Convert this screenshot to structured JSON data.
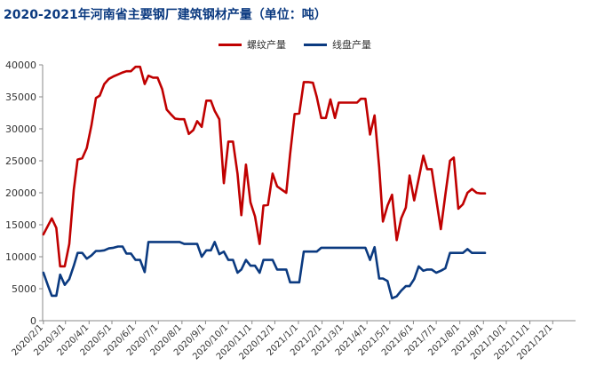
{
  "chart_data": {
    "type": "line",
    "title": "2020-2021年河南省主要钢厂建筑钢材产量（单位：吨）",
    "ylim": [
      0,
      40000
    ],
    "yticks": [
      0,
      5000,
      10000,
      15000,
      20000,
      25000,
      30000,
      35000,
      40000
    ],
    "xlim": [
      "2020-01-31",
      "2021-12-31"
    ],
    "xtick_labels": [
      "2020/2/1",
      "2020/3/1",
      "2020/4/1",
      "2020/5/1",
      "2020/6/1",
      "2020/7/1",
      "2020/8/1",
      "2020/9/1",
      "2020/10/1",
      "2020/11/1",
      "2020/12/1",
      "2021/1/1",
      "2021/2/1",
      "2021/3/1",
      "2021/4/1",
      "2021/5/1",
      "2021/6/1",
      "2021/7/1",
      "2021/8/1",
      "2021/9/1",
      "2021/10/1",
      "2021/11/1",
      "2021/12/1"
    ],
    "grid": false,
    "legend_position": "top-center",
    "series": [
      {
        "name": "螺纹产量",
        "color": "#c00000",
        "points": [
          [
            "2020-02-01",
            13500
          ],
          [
            "2020-02-12",
            16000
          ],
          [
            "2020-02-18",
            14500
          ],
          [
            "2020-02-23",
            8500
          ],
          [
            "2020-02-29",
            8500
          ],
          [
            "2020-03-06",
            12000
          ],
          [
            "2020-03-12",
            20500
          ],
          [
            "2020-03-17",
            25200
          ],
          [
            "2020-03-23",
            25400
          ],
          [
            "2020-03-29",
            27000
          ],
          [
            "2020-04-04",
            30500
          ],
          [
            "2020-04-10",
            34800
          ],
          [
            "2020-04-15",
            35200
          ],
          [
            "2020-04-21",
            37000
          ],
          [
            "2020-04-27",
            37800
          ],
          [
            "2020-05-03",
            38200
          ],
          [
            "2020-05-09",
            38500
          ],
          [
            "2020-05-15",
            38800
          ],
          [
            "2020-05-20",
            39000
          ],
          [
            "2020-05-26",
            39000
          ],
          [
            "2020-06-01",
            39700
          ],
          [
            "2020-06-07",
            39700
          ],
          [
            "2020-06-13",
            37000
          ],
          [
            "2020-06-18",
            38300
          ],
          [
            "2020-06-24",
            38000
          ],
          [
            "2020-06-30",
            38000
          ],
          [
            "2020-07-06",
            36200
          ],
          [
            "2020-07-12",
            33000
          ],
          [
            "2020-07-18",
            32200
          ],
          [
            "2020-07-23",
            31600
          ],
          [
            "2020-07-29",
            31500
          ],
          [
            "2020-08-04",
            31500
          ],
          [
            "2020-08-10",
            29200
          ],
          [
            "2020-08-16",
            29800
          ],
          [
            "2020-08-21",
            31200
          ],
          [
            "2020-08-27",
            30300
          ],
          [
            "2020-09-02",
            34400
          ],
          [
            "2020-09-08",
            34400
          ],
          [
            "2020-09-13",
            32800
          ],
          [
            "2020-09-19",
            31500
          ],
          [
            "2020-09-25",
            21500
          ],
          [
            "2020-10-01",
            28000
          ],
          [
            "2020-10-07",
            28000
          ],
          [
            "2020-10-13",
            23000
          ],
          [
            "2020-10-18",
            16500
          ],
          [
            "2020-10-24",
            24400
          ],
          [
            "2020-10-30",
            18500
          ],
          [
            "2020-11-05",
            16300
          ],
          [
            "2020-11-11",
            12000
          ],
          [
            "2020-11-16",
            18000
          ],
          [
            "2020-11-22",
            18100
          ],
          [
            "2020-11-28",
            23000
          ],
          [
            "2020-12-04",
            21000
          ],
          [
            "2020-12-10",
            20500
          ],
          [
            "2020-12-16",
            20000
          ],
          [
            "2020-12-21",
            26000
          ],
          [
            "2020-12-27",
            32300
          ],
          [
            "2021-01-02",
            32400
          ],
          [
            "2021-01-08",
            37300
          ],
          [
            "2021-01-14",
            37300
          ],
          [
            "2021-01-20",
            37200
          ],
          [
            "2021-01-25",
            35000
          ],
          [
            "2021-01-31",
            31700
          ],
          [
            "2021-02-06",
            31700
          ],
          [
            "2021-02-12",
            34600
          ],
          [
            "2021-02-18",
            31700
          ],
          [
            "2021-02-23",
            34100
          ],
          [
            "2021-03-01",
            34100
          ],
          [
            "2021-03-07",
            34100
          ],
          [
            "2021-03-13",
            34100
          ],
          [
            "2021-03-19",
            34100
          ],
          [
            "2021-03-24",
            34700
          ],
          [
            "2021-03-30",
            34700
          ],
          [
            "2021-04-05",
            29100
          ],
          [
            "2021-04-11",
            32100
          ],
          [
            "2021-04-17",
            24000
          ],
          [
            "2021-04-22",
            15500
          ],
          [
            "2021-04-28",
            18000
          ],
          [
            "2021-05-04",
            19700
          ],
          [
            "2021-05-10",
            12600
          ],
          [
            "2021-05-16",
            16000
          ],
          [
            "2021-05-22",
            17700
          ],
          [
            "2021-05-27",
            22700
          ],
          [
            "2021-06-02",
            18800
          ],
          [
            "2021-06-08",
            22200
          ],
          [
            "2021-06-14",
            25800
          ],
          [
            "2021-06-19",
            23700
          ],
          [
            "2021-06-25",
            23700
          ],
          [
            "2021-07-01",
            19000
          ],
          [
            "2021-07-07",
            14300
          ],
          [
            "2021-07-13",
            19700
          ],
          [
            "2021-07-19",
            25000
          ],
          [
            "2021-07-24",
            25500
          ],
          [
            "2021-07-30",
            17500
          ],
          [
            "2021-08-05",
            18200
          ],
          [
            "2021-08-11",
            20000
          ],
          [
            "2021-08-17",
            20600
          ],
          [
            "2021-08-23",
            20000
          ],
          [
            "2021-08-28",
            19900
          ],
          [
            "2021-09-03",
            19900
          ]
        ]
      },
      {
        "name": "线盘产量",
        "color": "#0b3a80",
        "points": [
          [
            "2020-02-01",
            7500
          ],
          [
            "2020-02-07",
            5500
          ],
          [
            "2020-02-12",
            3900
          ],
          [
            "2020-02-18",
            3900
          ],
          [
            "2020-02-23",
            7200
          ],
          [
            "2020-02-29",
            5600
          ],
          [
            "2020-03-06",
            6500
          ],
          [
            "2020-03-12",
            8600
          ],
          [
            "2020-03-17",
            10600
          ],
          [
            "2020-03-23",
            10600
          ],
          [
            "2020-03-29",
            9700
          ],
          [
            "2020-04-04",
            10200
          ],
          [
            "2020-04-10",
            10900
          ],
          [
            "2020-04-15",
            10900
          ],
          [
            "2020-04-21",
            11000
          ],
          [
            "2020-04-27",
            11300
          ],
          [
            "2020-05-03",
            11400
          ],
          [
            "2020-05-09",
            11600
          ],
          [
            "2020-05-15",
            11600
          ],
          [
            "2020-05-20",
            10500
          ],
          [
            "2020-05-26",
            10500
          ],
          [
            "2020-06-01",
            9500
          ],
          [
            "2020-06-07",
            9500
          ],
          [
            "2020-06-13",
            7600
          ],
          [
            "2020-06-18",
            12300
          ],
          [
            "2020-06-24",
            12300
          ],
          [
            "2020-06-30",
            12300
          ],
          [
            "2020-07-06",
            12300
          ],
          [
            "2020-07-12",
            12300
          ],
          [
            "2020-07-18",
            12300
          ],
          [
            "2020-07-23",
            12300
          ],
          [
            "2020-07-29",
            12300
          ],
          [
            "2020-08-04",
            12000
          ],
          [
            "2020-08-10",
            12000
          ],
          [
            "2020-08-16",
            12000
          ],
          [
            "2020-08-21",
            12000
          ],
          [
            "2020-08-27",
            10000
          ],
          [
            "2020-09-02",
            11000
          ],
          [
            "2020-09-08",
            11000
          ],
          [
            "2020-09-13",
            12300
          ],
          [
            "2020-09-19",
            10400
          ],
          [
            "2020-09-25",
            10800
          ],
          [
            "2020-10-01",
            9500
          ],
          [
            "2020-10-07",
            9500
          ],
          [
            "2020-10-13",
            7500
          ],
          [
            "2020-10-18",
            8000
          ],
          [
            "2020-10-24",
            9500
          ],
          [
            "2020-10-30",
            8600
          ],
          [
            "2020-11-05",
            8600
          ],
          [
            "2020-11-11",
            7500
          ],
          [
            "2020-11-16",
            9500
          ],
          [
            "2020-11-22",
            9500
          ],
          [
            "2020-11-28",
            9500
          ],
          [
            "2020-12-04",
            8000
          ],
          [
            "2020-12-10",
            8000
          ],
          [
            "2020-12-16",
            8000
          ],
          [
            "2020-12-21",
            6000
          ],
          [
            "2020-12-27",
            6000
          ],
          [
            "2021-01-02",
            6000
          ],
          [
            "2021-01-08",
            10800
          ],
          [
            "2021-01-14",
            10800
          ],
          [
            "2021-01-20",
            10800
          ],
          [
            "2021-01-25",
            10800
          ],
          [
            "2021-01-31",
            11400
          ],
          [
            "2021-02-06",
            11400
          ],
          [
            "2021-02-12",
            11400
          ],
          [
            "2021-02-18",
            11400
          ],
          [
            "2021-02-23",
            11400
          ],
          [
            "2021-03-01",
            11400
          ],
          [
            "2021-03-07",
            11400
          ],
          [
            "2021-03-13",
            11400
          ],
          [
            "2021-03-19",
            11400
          ],
          [
            "2021-03-24",
            11400
          ],
          [
            "2021-03-30",
            11400
          ],
          [
            "2021-04-05",
            9500
          ],
          [
            "2021-04-11",
            11500
          ],
          [
            "2021-04-17",
            6600
          ],
          [
            "2021-04-22",
            6600
          ],
          [
            "2021-04-28",
            6200
          ],
          [
            "2021-05-04",
            3500
          ],
          [
            "2021-05-10",
            3800
          ],
          [
            "2021-05-16",
            4700
          ],
          [
            "2021-05-22",
            5400
          ],
          [
            "2021-05-27",
            5400
          ],
          [
            "2021-06-02",
            6500
          ],
          [
            "2021-06-08",
            8500
          ],
          [
            "2021-06-14",
            7800
          ],
          [
            "2021-06-19",
            8000
          ],
          [
            "2021-06-25",
            8000
          ],
          [
            "2021-07-01",
            7500
          ],
          [
            "2021-07-07",
            7800
          ],
          [
            "2021-07-13",
            8200
          ],
          [
            "2021-07-19",
            10600
          ],
          [
            "2021-07-24",
            10600
          ],
          [
            "2021-07-30",
            10600
          ],
          [
            "2021-08-05",
            10600
          ],
          [
            "2021-08-11",
            11200
          ],
          [
            "2021-08-17",
            10600
          ],
          [
            "2021-08-23",
            10600
          ],
          [
            "2021-08-28",
            10600
          ],
          [
            "2021-09-03",
            10600
          ]
        ]
      }
    ]
  }
}
